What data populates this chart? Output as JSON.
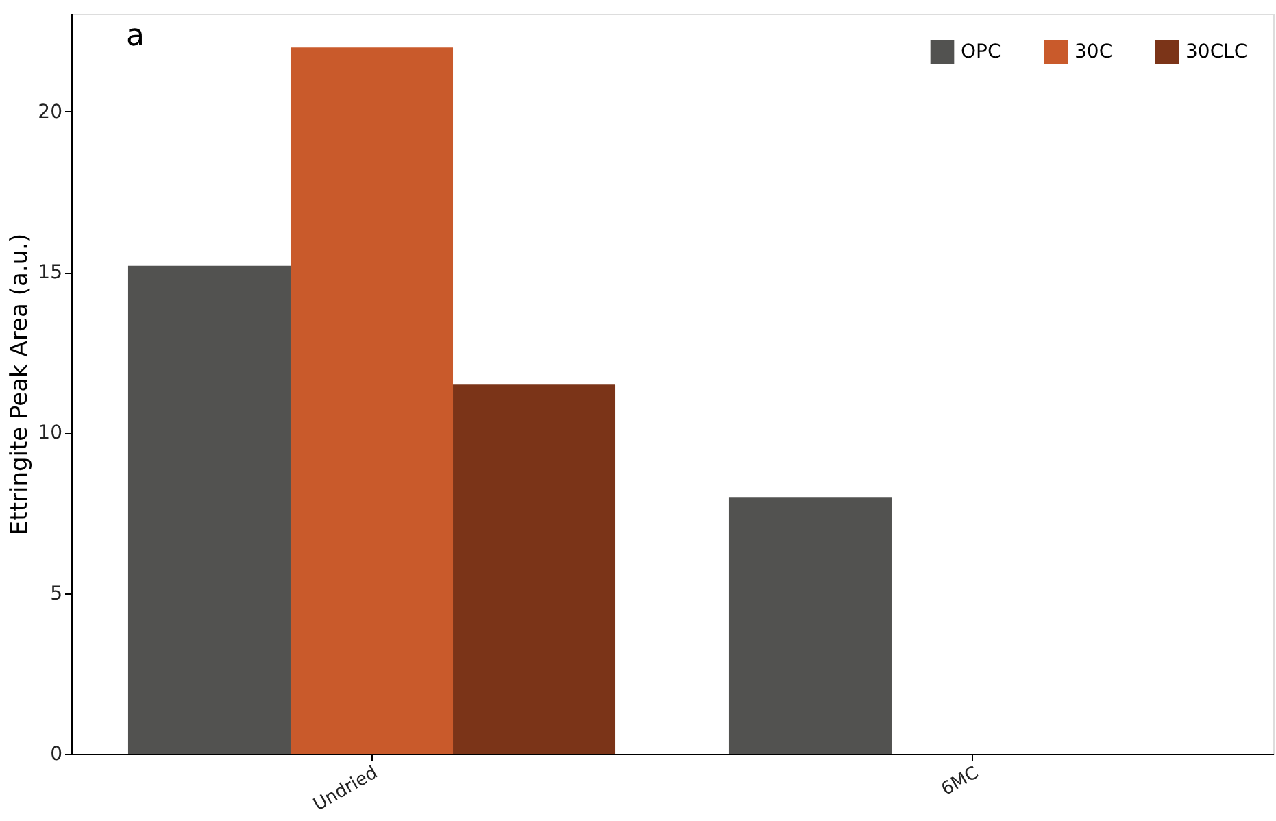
{
  "chart_data": {
    "type": "bar",
    "ylabel": "Ettringite Peak Area (a.u.)",
    "categories": [
      "Undried",
      "6MC"
    ],
    "series": [
      {
        "name": "OPC",
        "color": "#525250",
        "values": [
          15.2,
          8.0
        ]
      },
      {
        "name": "30C",
        "color": "#c95a2b",
        "values": [
          22.0,
          0
        ]
      },
      {
        "name": "30CLC",
        "color": "#7b3418",
        "values": [
          11.5,
          0
        ]
      }
    ],
    "ylim": [
      0,
      23.05
    ],
    "yticks": [
      0,
      5,
      10,
      15,
      20
    ],
    "grid": false,
    "legend": "top right",
    "annotations": [
      "a"
    ]
  }
}
